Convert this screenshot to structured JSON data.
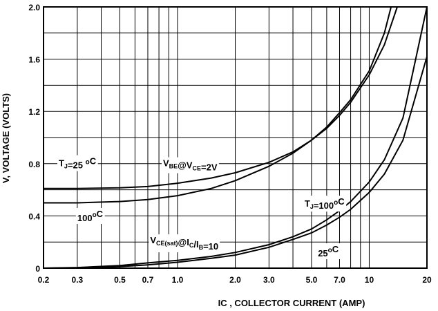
{
  "chart_data": {
    "type": "line",
    "xlabel": "IC , COLLECTOR CURRENT (AMP)",
    "ylabel": "V, VOLTAGE (VOLTS)",
    "x_scale": "log",
    "xlim": [
      0.2,
      20
    ],
    "ylim": [
      0,
      2.0
    ],
    "grid": true,
    "x_ticks": [
      0.2,
      0.3,
      0.5,
      0.7,
      1.0,
      2.0,
      3.0,
      5.0,
      7.0,
      10,
      20
    ],
    "x_tick_labels": [
      "0.2",
      "0.3",
      "0.5",
      "0.7",
      "1.0",
      "2.0",
      "3.0",
      "5.0",
      "7.0",
      "10",
      "20"
    ],
    "x_grid": [
      0.2,
      0.3,
      0.4,
      0.5,
      0.6,
      0.7,
      0.8,
      0.9,
      1,
      2,
      3,
      4,
      5,
      6,
      7,
      8,
      9,
      10,
      20
    ],
    "y_ticks": [
      0,
      0.4,
      0.8,
      1.2,
      1.6,
      2.0
    ],
    "y_tick_labels": [
      "0",
      "0.4",
      "0.8",
      "1.2",
      "1.6",
      "2.0"
    ],
    "y_grid": [
      0,
      0.2,
      0.4,
      0.6,
      0.8,
      1.0,
      1.2,
      1.4,
      1.6,
      1.8,
      2.0
    ],
    "series": [
      {
        "x": [
          0.2,
          0.3,
          0.5,
          0.7,
          1.0,
          1.5,
          2.0,
          3.0,
          4.0,
          5.0,
          6.0,
          7.0,
          8.0,
          10.0,
          12.0,
          14.0
        ],
        "y": [
          0.61,
          0.61,
          0.615,
          0.625,
          0.65,
          0.69,
          0.73,
          0.81,
          0.89,
          0.98,
          1.07,
          1.17,
          1.27,
          1.48,
          1.71,
          2.0
        ]
      },
      {
        "x": [
          0.2,
          0.3,
          0.5,
          0.7,
          1.0,
          1.5,
          2.0,
          3.0,
          4.0,
          5.0,
          6.0,
          7.0,
          8.0,
          10.0,
          12.0,
          13.0
        ],
        "y": [
          0.5,
          0.5,
          0.51,
          0.525,
          0.555,
          0.61,
          0.67,
          0.78,
          0.88,
          0.98,
          1.08,
          1.19,
          1.29,
          1.51,
          1.8,
          2.0
        ]
      },
      {
        "x": [
          0.2,
          0.3,
          0.5,
          0.7,
          1.0,
          1.5,
          2.0,
          3.0,
          4.0,
          5.0,
          6.0,
          7.0,
          8.0,
          10.0,
          12.0,
          15.0,
          20.0
        ],
        "y": [
          0.0,
          0.005,
          0.02,
          0.04,
          0.06,
          0.09,
          0.12,
          0.18,
          0.24,
          0.3,
          0.37,
          0.44,
          0.51,
          0.66,
          0.83,
          1.15,
          2.0
        ]
      },
      {
        "x": [
          0.2,
          0.3,
          0.5,
          0.7,
          1.0,
          1.5,
          2.0,
          3.0,
          4.0,
          5.0,
          6.0,
          7.0,
          8.0,
          10.0,
          12.0,
          15.0,
          20.0
        ],
        "y": [
          0.0,
          0.003,
          0.012,
          0.025,
          0.045,
          0.075,
          0.1,
          0.16,
          0.22,
          0.27,
          0.33,
          0.39,
          0.45,
          0.58,
          0.72,
          0.98,
          1.62
        ]
      }
    ],
    "annotations": [
      {
        "id": "tj25",
        "text": "TJ=25 °C",
        "x": 0.24,
        "y": 0.78
      },
      {
        "id": "vbe",
        "text": "VBE@VCE=2V",
        "x": 0.84,
        "y": 0.78
      },
      {
        "id": "t100a",
        "text": "100°C",
        "x": 0.3,
        "y": 0.36
      },
      {
        "id": "vcesat",
        "text": "VCE(sat)@IC/IB=10",
        "x": 0.72,
        "y": 0.19
      },
      {
        "id": "tj100b",
        "text": "TJ=100°C",
        "x": 4.6,
        "y": 0.47
      },
      {
        "id": "t25b",
        "text": "25°C",
        "x": 5.4,
        "y": 0.09
      }
    ]
  }
}
